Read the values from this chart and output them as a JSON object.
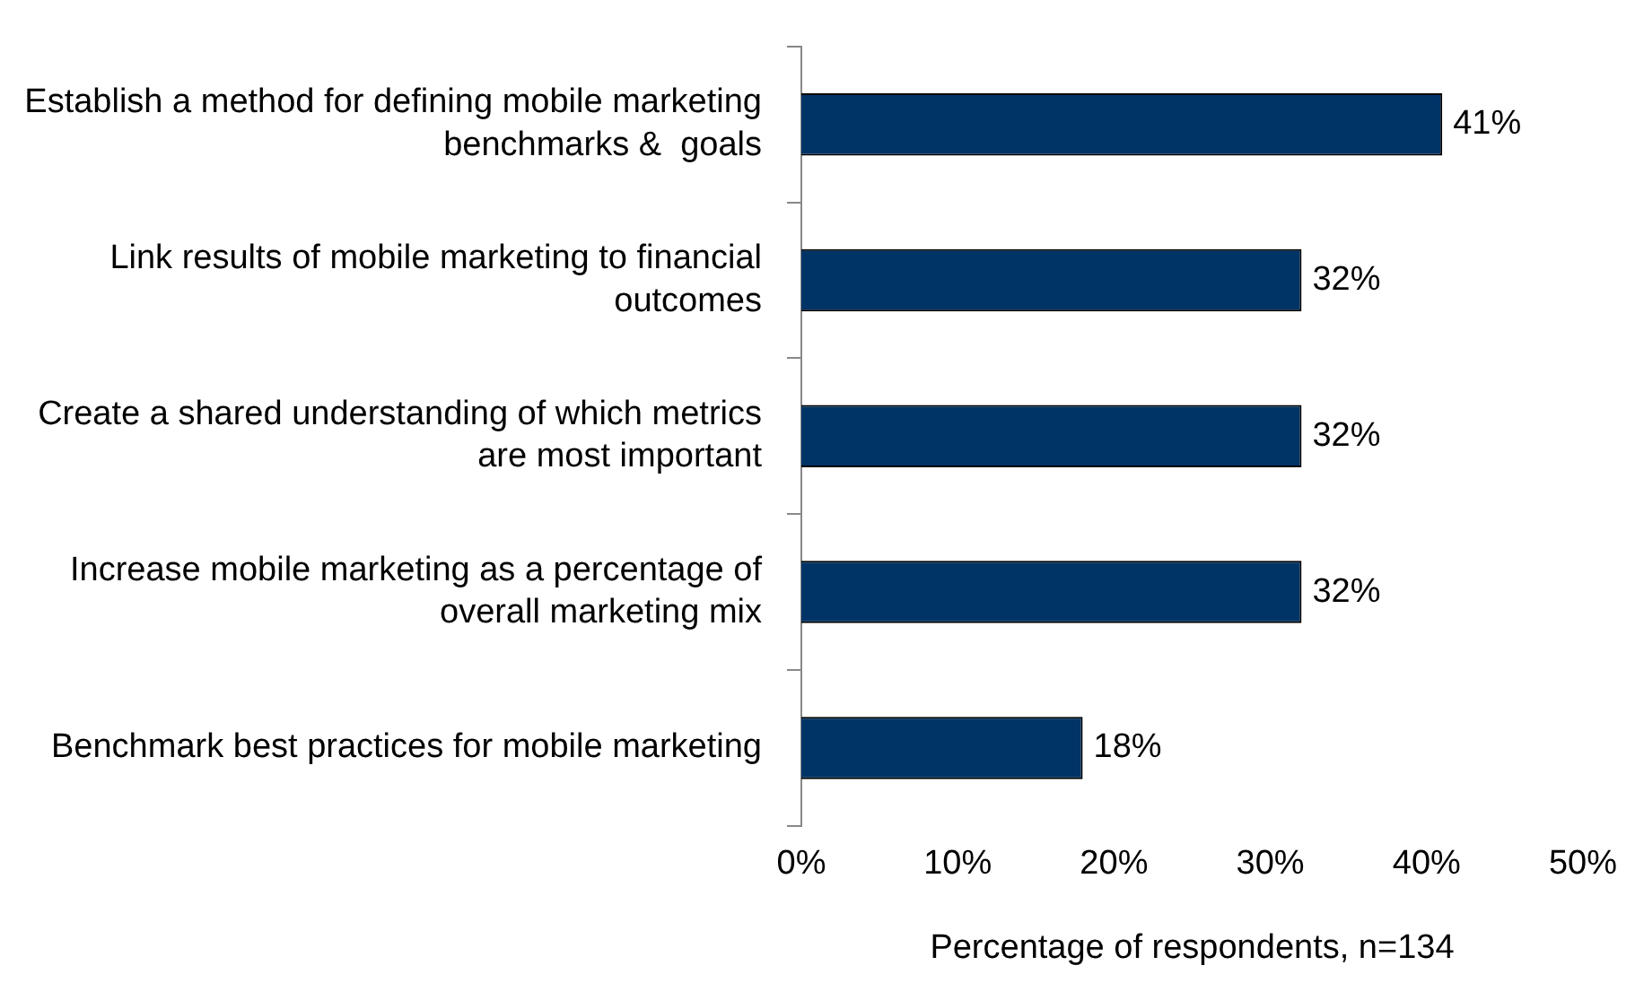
{
  "chart_data": {
    "type": "bar",
    "orientation": "horizontal",
    "xlabel": "Percentage of respondents, n=134",
    "categories": [
      "Establish a method for defining mobile marketing benchmarks &  goals",
      "Link results of mobile marketing to financial outcomes",
      "Create a shared understanding of which metrics are most important",
      "Increase mobile marketing as a percentage of overall marketing mix",
      "Benchmark best practices for mobile marketing"
    ],
    "values": [
      41,
      32,
      32,
      32,
      18
    ],
    "value_labels": [
      "41%",
      "32%",
      "32%",
      "32%",
      "18%"
    ],
    "color": "#003366",
    "xlim": [
      0,
      50
    ],
    "xticks": [
      {
        "value": 0,
        "label": "0%"
      },
      {
        "value": 10,
        "label": "10%"
      },
      {
        "value": 20,
        "label": "20%"
      },
      {
        "value": 30,
        "label": "30%"
      },
      {
        "value": 40,
        "label": "40%"
      },
      {
        "value": 50,
        "label": "50%"
      }
    ],
    "grid": false,
    "legend": false
  }
}
